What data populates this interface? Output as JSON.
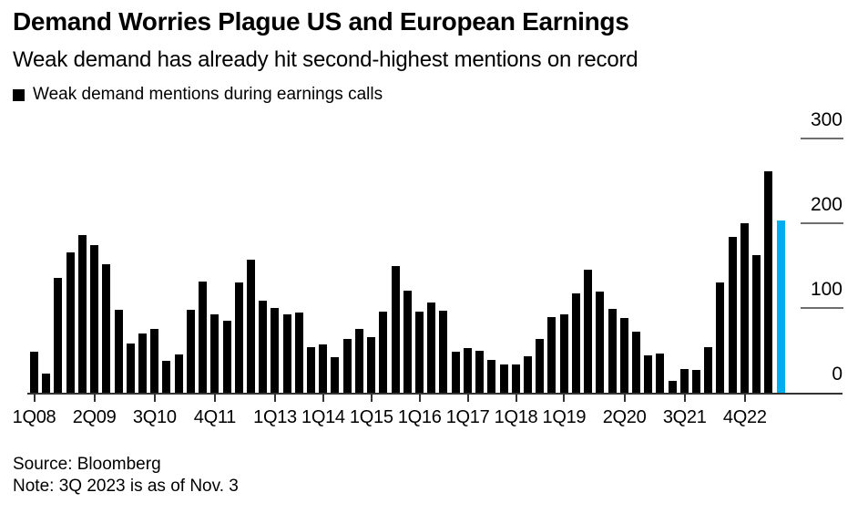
{
  "header": {
    "title": "Demand Worries Plague US and European Earnings",
    "subtitle": "Weak demand has already hit second-highest mentions on record"
  },
  "legend": {
    "swatch_color": "#000000",
    "label": "Weak demand mentions during earnings calls"
  },
  "chart_data": {
    "type": "bar",
    "title": "Weak demand mentions during earnings calls",
    "xlabel": "",
    "ylabel": "",
    "ylim": [
      0,
      300
    ],
    "yticks": [
      0,
      100,
      200,
      300
    ],
    "grid": "right-side short gridline segments, full-width zero baseline",
    "legend_position": "top-left",
    "bar_color": "#000000",
    "highlight": {
      "index": 62,
      "color": "#00adee",
      "label": "3Q23 (as of Nov. 3)"
    },
    "x": [
      "1Q08",
      "2Q08",
      "3Q08",
      "4Q08",
      "1Q09",
      "2Q09",
      "3Q09",
      "4Q09",
      "1Q10",
      "2Q10",
      "3Q10",
      "4Q10",
      "1Q11",
      "2Q11",
      "3Q11",
      "4Q11",
      "1Q12",
      "2Q12",
      "3Q12",
      "4Q12",
      "1Q13",
      "2Q13",
      "3Q13",
      "4Q13",
      "1Q14",
      "2Q14",
      "3Q14",
      "4Q14",
      "1Q15",
      "2Q15",
      "3Q15",
      "4Q15",
      "1Q16",
      "2Q16",
      "3Q16",
      "4Q16",
      "1Q17",
      "2Q17",
      "3Q17",
      "4Q17",
      "1Q18",
      "2Q18",
      "3Q18",
      "4Q18",
      "1Q19",
      "2Q19",
      "3Q19",
      "4Q19",
      "1Q20",
      "2Q20",
      "3Q20",
      "4Q20",
      "1Q21",
      "2Q21",
      "3Q21",
      "4Q21",
      "1Q22",
      "2Q22",
      "3Q22",
      "4Q22",
      "1Q23",
      "2Q23",
      "3Q23"
    ],
    "values": [
      48,
      23,
      135,
      166,
      186,
      174,
      152,
      98,
      58,
      70,
      75,
      38,
      45,
      98,
      131,
      93,
      85,
      130,
      157,
      109,
      100,
      92,
      95,
      54,
      57,
      42,
      64,
      75,
      66,
      96,
      150,
      120,
      96,
      107,
      97,
      48,
      53,
      50,
      39,
      33,
      33,
      43,
      63,
      89,
      93,
      117,
      145,
      119,
      99,
      88,
      72,
      44,
      46,
      14,
      28,
      27,
      54,
      130,
      184,
      200,
      162,
      261,
      203
    ],
    "xtick_labels": [
      "1Q08",
      "2Q09",
      "3Q10",
      "4Q11",
      "1Q13",
      "1Q14",
      "1Q15",
      "1Q16",
      "1Q17",
      "1Q18",
      "1Q19",
      "2Q20",
      "3Q21",
      "4Q22"
    ],
    "xtick_indices": [
      0,
      5,
      10,
      15,
      20,
      24,
      28,
      32,
      36,
      40,
      44,
      49,
      54,
      59
    ]
  },
  "footer": {
    "source": "Source: Bloomberg",
    "note": "Note: 3Q 2023 is as of Nov. 3"
  }
}
